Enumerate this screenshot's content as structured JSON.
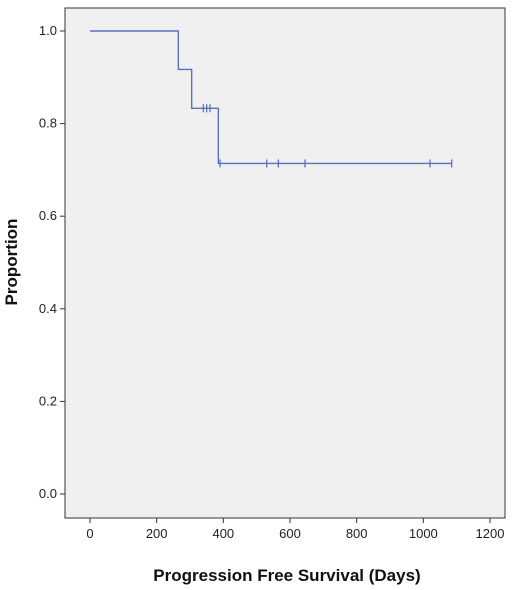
{
  "chart_data": {
    "type": "line",
    "subtype": "kaplan-meier",
    "xlabel": "Progression Free Survival (Days)",
    "ylabel": "Proportion",
    "xlim": [
      0,
      1200
    ],
    "ylim": [
      0,
      1
    ],
    "x_ticks": [
      0,
      200,
      400,
      600,
      800,
      1000,
      1200
    ],
    "x_tick_labels": [
      "0",
      "200",
      "400",
      "600",
      "800",
      "1000",
      "1200"
    ],
    "y_ticks": [
      0,
      0.2,
      0.4,
      0.6,
      0.8,
      1.0
    ],
    "y_tick_labels": [
      "0.0",
      "0.2",
      "0.4",
      "0.6",
      "0.8",
      "1.0"
    ],
    "grid": false,
    "colors": {
      "line": "#5b6fc0",
      "plot_background": "#f0f0f0",
      "frame": "#333333"
    },
    "series": [
      {
        "steps": [
          {
            "x": 0,
            "y": 1.0
          },
          {
            "x": 265,
            "y": 0.917
          },
          {
            "x": 305,
            "y": 0.833
          },
          {
            "x": 385,
            "y": 0.714
          }
        ],
        "end_x": 1085,
        "censored": [
          {
            "x": 340,
            "y": 0.833
          },
          {
            "x": 350,
            "y": 0.833
          },
          {
            "x": 360,
            "y": 0.833
          },
          {
            "x": 390,
            "y": 0.714
          },
          {
            "x": 530,
            "y": 0.714
          },
          {
            "x": 565,
            "y": 0.714
          },
          {
            "x": 645,
            "y": 0.714
          },
          {
            "x": 1020,
            "y": 0.714
          },
          {
            "x": 1085,
            "y": 0.714
          }
        ]
      }
    ]
  }
}
